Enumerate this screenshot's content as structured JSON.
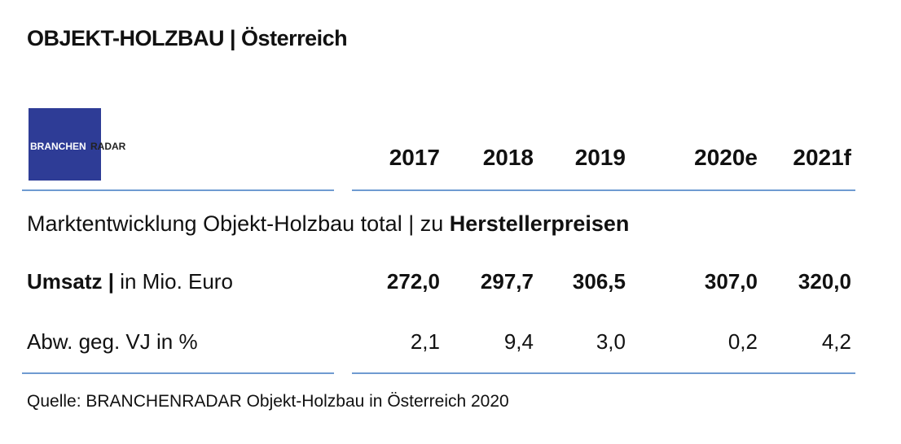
{
  "title": "OBJEKT-HOLZBAU | Österreich",
  "logo": {
    "part1": "BRANCHEN",
    "part2": "RADAR"
  },
  "table": {
    "header": [
      "2017",
      "2018",
      "2019",
      "2020e",
      "2021f"
    ],
    "section": {
      "text": "Marktentwicklung Objekt-Holzbau total | zu ",
      "bold": "Herstellerpreisen"
    },
    "rows": [
      {
        "label_bold": "Umsatz |",
        "label": " in Mio. Euro",
        "values": [
          "272,0",
          "297,7",
          "306,5",
          "307,0",
          "320,0"
        ]
      },
      {
        "label": "Abw. geg. VJ in %",
        "values": [
          "2,1",
          "9,4",
          "3,0",
          "0,2",
          "4,2"
        ]
      }
    ]
  },
  "source": "Quelle: BRANCHENRADAR Objekt-Holzbau in Österreich 2020"
}
